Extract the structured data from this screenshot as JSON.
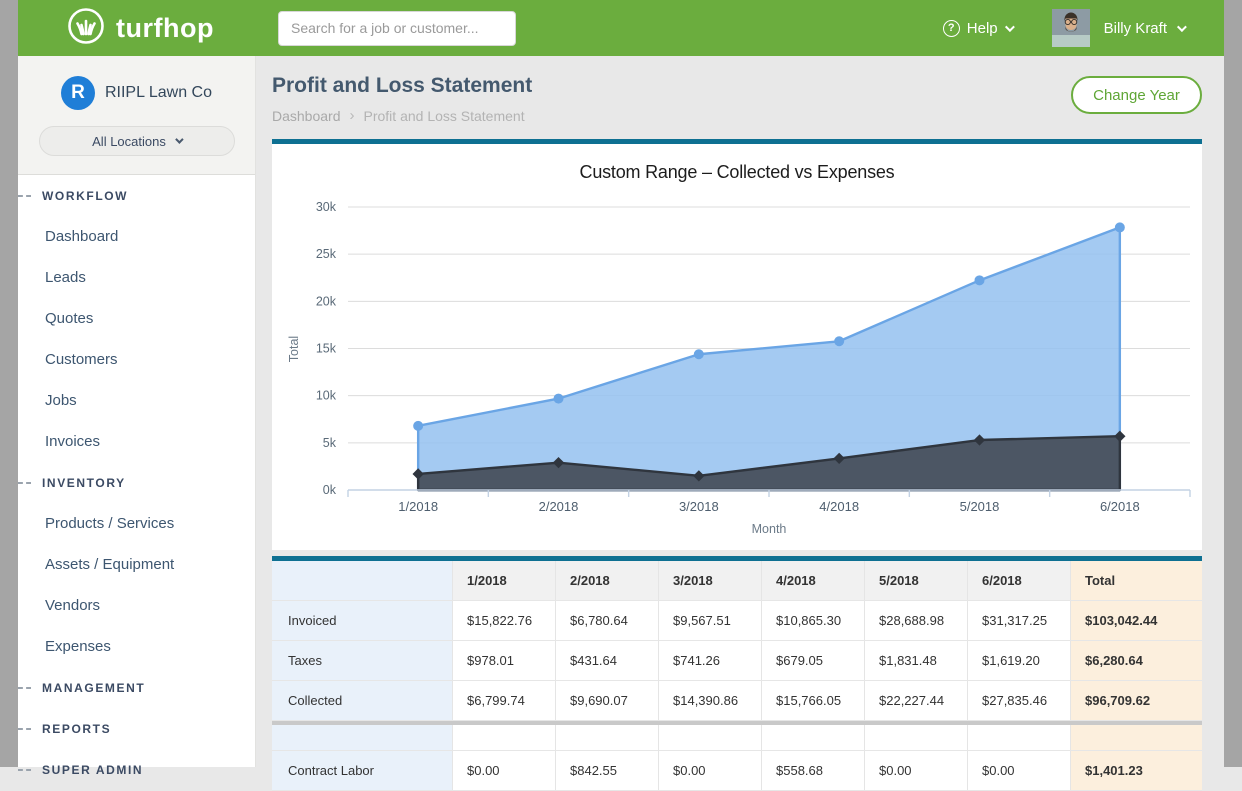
{
  "topbar": {
    "brand": "turfhop",
    "search_placeholder": "Search for a job or customer...",
    "help_label": "Help",
    "user_name": "Billy Kraft"
  },
  "icons": {
    "logo": "grass-in-circle",
    "help": "question-mark-circle",
    "dropdown": "chevron-down",
    "breadcrumb_separator": "›"
  },
  "sidebar": {
    "company_initial": "R",
    "company_name": "RIIPL Lawn Co",
    "location_selector": "All Locations",
    "sections": [
      {
        "label": "WORKFLOW",
        "items": [
          "Dashboard",
          "Leads",
          "Quotes",
          "Customers",
          "Jobs",
          "Invoices"
        ]
      },
      {
        "label": "INVENTORY",
        "items": [
          "Products / Services",
          "Assets / Equipment",
          "Vendors",
          "Expenses"
        ]
      },
      {
        "label": "MANAGEMENT",
        "items": []
      },
      {
        "label": "REPORTS",
        "items": []
      },
      {
        "label": "SUPER ADMIN",
        "items": []
      }
    ]
  },
  "page": {
    "title": "Profit and Loss Statement",
    "breadcrumb": [
      "Dashboard",
      "Profit and Loss Statement"
    ],
    "change_year_label": "Change Year"
  },
  "chart_data": {
    "type": "area",
    "title": "Custom Range – Collected vs Expenses",
    "xlabel": "Month",
    "ylabel": "Total",
    "categories": [
      "1/2018",
      "2/2018",
      "3/2018",
      "4/2018",
      "5/2018",
      "6/2018"
    ],
    "y_tick_labels": [
      "0k",
      "5k",
      "10k",
      "15k",
      "20k",
      "25k",
      "30k"
    ],
    "ylim": [
      0,
      30000
    ],
    "grid": true,
    "legend": "none",
    "series": [
      {
        "name": "Collected",
        "values": [
          6799.74,
          9690.07,
          14390.86,
          15766.05,
          22227.44,
          27835.46
        ],
        "line_color": "#6aa5e5",
        "fill_color": "rgba(148,193,240,0.85)",
        "marker": "circle"
      },
      {
        "name": "Expenses",
        "values": [
          1700,
          2900,
          1500,
          3350,
          5300,
          5700
        ],
        "line_color": "#2f353e",
        "fill_color": "rgba(68,76,88,0.92)",
        "marker": "diamond"
      }
    ]
  },
  "table": {
    "columns": [
      "1/2018",
      "2/2018",
      "3/2018",
      "4/2018",
      "5/2018",
      "6/2018",
      "Total"
    ],
    "income_rows": [
      {
        "label": "Invoiced",
        "values": [
          "$15,822.76",
          "$6,780.64",
          "$9,567.51",
          "$10,865.30",
          "$28,688.98",
          "$31,317.25"
        ],
        "total": "$103,042.44"
      },
      {
        "label": "Taxes",
        "values": [
          "$978.01",
          "$431.64",
          "$741.26",
          "$679.05",
          "$1,831.48",
          "$1,619.20"
        ],
        "total": "$6,280.64"
      },
      {
        "label": "Collected",
        "values": [
          "$6,799.74",
          "$9,690.07",
          "$14,390.86",
          "$15,766.05",
          "$22,227.44",
          "$27,835.46"
        ],
        "total": "$96,709.62"
      }
    ],
    "expense_rows": [
      {
        "label": "Contract Labor",
        "values": [
          "$0.00",
          "$842.55",
          "$0.00",
          "$558.68",
          "$0.00",
          "$0.00"
        ],
        "total": "$1,401.23"
      }
    ]
  },
  "colors": {
    "brand_green": "#6bad3e",
    "teal_accent": "#0e7092",
    "sidebar_text": "#3b4a63",
    "page_bg": "#e8e8e8",
    "label_col_bg": "#e9f1fa",
    "total_col_bg": "#fcefdd",
    "blue_series": "#6aa5e5",
    "dark_series": "#3e4651"
  }
}
